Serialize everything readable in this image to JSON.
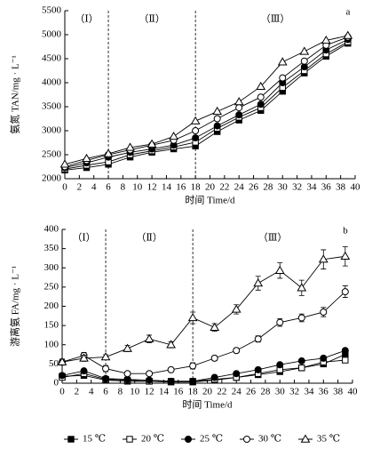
{
  "chart_data": [
    {
      "type": "line",
      "panel_label": "a",
      "y_label": "氨氮 TAN/mg · L⁻¹",
      "x_label": "时间 Time/d",
      "phases": [
        "（Ⅰ）",
        "（Ⅱ）",
        "（Ⅲ）"
      ],
      "phase_lines": [
        6,
        18
      ],
      "x": [
        0,
        3,
        6,
        9,
        12,
        15,
        18,
        21,
        24,
        27,
        30,
        33,
        36,
        39
      ],
      "xlim": [
        0,
        40
      ],
      "xticks": [
        0,
        2,
        4,
        6,
        8,
        10,
        12,
        14,
        16,
        18,
        20,
        22,
        24,
        26,
        28,
        30,
        32,
        34,
        36,
        38,
        40
      ],
      "ylim": [
        2000,
        5500
      ],
      "yticks": [
        2000,
        2500,
        3000,
        3500,
        4000,
        4500,
        5000,
        5500
      ],
      "series": [
        {
          "name": "15 ℃",
          "color": "#000000",
          "marker": "square",
          "filled": true,
          "values": [
            2180,
            2230,
            2300,
            2450,
            2550,
            2620,
            2680,
            2980,
            3220,
            3420,
            3820,
            4200,
            4550,
            4820
          ]
        },
        {
          "name": "20 ℃",
          "color": "#000000",
          "marker": "square",
          "filled": false,
          "values": [
            2200,
            2280,
            2350,
            2500,
            2580,
            2660,
            2760,
            3050,
            3280,
            3480,
            3900,
            4250,
            4600,
            4850
          ]
        },
        {
          "name": "25 ℃",
          "color": "#000000",
          "marker": "circle",
          "filled": true,
          "values": [
            2230,
            2330,
            2450,
            2550,
            2620,
            2700,
            2850,
            3100,
            3330,
            3550,
            4000,
            4330,
            4680,
            4900
          ]
        },
        {
          "name": "30 ℃",
          "color": "#000000",
          "marker": "circle",
          "filled": false,
          "values": [
            2250,
            2380,
            2500,
            2600,
            2700,
            2800,
            3000,
            3250,
            3480,
            3700,
            4100,
            4450,
            4780,
            4950
          ]
        },
        {
          "name": "35 ℃",
          "color": "#000000",
          "marker": "triangle",
          "filled": false,
          "values": [
            2300,
            2420,
            2520,
            2650,
            2720,
            2880,
            3200,
            3400,
            3600,
            3920,
            4430,
            4650,
            4880,
            4980
          ]
        }
      ]
    },
    {
      "type": "line",
      "panel_label": "b",
      "y_label": "游离氨 FA/mg · L⁻¹",
      "x_label": "时间 Time/d",
      "phases": [
        "（Ⅰ）",
        "（Ⅱ）",
        "（Ⅲ）"
      ],
      "phase_lines": [
        6,
        18
      ],
      "x": [
        0,
        3,
        6,
        9,
        12,
        15,
        18,
        21,
        24,
        27,
        30,
        33,
        36,
        39
      ],
      "xlim": [
        0,
        40
      ],
      "xticks": [
        0,
        2,
        4,
        6,
        8,
        10,
        12,
        14,
        16,
        18,
        20,
        22,
        24,
        26,
        28,
        30,
        32,
        34,
        36,
        38,
        40
      ],
      "ylim": [
        0,
        400
      ],
      "yticks": [
        0,
        50,
        100,
        150,
        200,
        250,
        300,
        350,
        400
      ],
      "series": [
        {
          "name": "15 ℃",
          "color": "#000000",
          "marker": "square",
          "filled": true,
          "values": [
            18,
            20,
            8,
            5,
            5,
            3,
            3,
            8,
            15,
            22,
            30,
            40,
            50,
            75
          ]
        },
        {
          "name": "20 ℃",
          "color": "#000000",
          "marker": "square",
          "filled": false,
          "values": [
            15,
            25,
            10,
            8,
            5,
            5,
            5,
            10,
            15,
            25,
            35,
            40,
            55,
            60
          ]
        },
        {
          "name": "25 ℃",
          "color": "#000000",
          "marker": "circle",
          "filled": true,
          "values": [
            20,
            32,
            12,
            10,
            8,
            5,
            5,
            15,
            25,
            35,
            48,
            58,
            65,
            85
          ]
        },
        {
          "name": "30 ℃",
          "color": "#000000",
          "marker": "circle",
          "filled": false,
          "values": [
            55,
            72,
            38,
            25,
            25,
            35,
            45,
            65,
            85,
            115,
            158,
            170,
            185,
            238
          ],
          "errors": [
            8,
            8,
            8,
            5,
            5,
            5,
            8,
            6,
            6,
            8,
            10,
            10,
            12,
            15
          ]
        },
        {
          "name": "35 ℃",
          "color": "#000000",
          "marker": "triangle",
          "filled": false,
          "values": [
            55,
            65,
            68,
            90,
            115,
            100,
            170,
            145,
            192,
            260,
            293,
            248,
            322,
            330
          ],
          "errors": [
            5,
            8,
            6,
            8,
            10,
            8,
            15,
            10,
            12,
            18,
            20,
            20,
            25,
            25
          ]
        }
      ]
    }
  ]
}
